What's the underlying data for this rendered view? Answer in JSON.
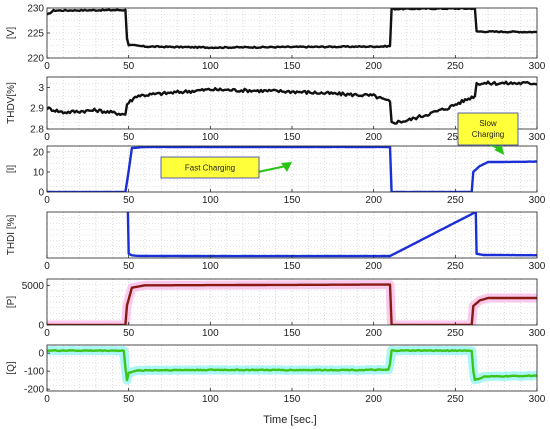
{
  "chart_data": [
    {
      "type": "line",
      "ylabel": "[V]",
      "xlim": [
        0,
        300
      ],
      "ylim": [
        220,
        230
      ],
      "yticks": [
        220,
        225,
        230
      ],
      "xticks": [
        0,
        50,
        100,
        150,
        200,
        250,
        300
      ],
      "grid": true,
      "series": [
        {
          "color": "#111111",
          "shade": null,
          "noise": 0.12,
          "x": [
            0,
            4,
            48,
            49,
            50,
            60,
            100,
            150,
            205,
            210,
            211,
            240,
            262,
            263,
            300
          ],
          "y": [
            228.6,
            229.5,
            229.6,
            224,
            222.6,
            222.3,
            222.1,
            222.2,
            222.3,
            222.4,
            229.8,
            229.9,
            229.9,
            225.3,
            225.2
          ]
        }
      ]
    },
    {
      "type": "line",
      "ylabel": "THDV[%]",
      "xlim": [
        0,
        300
      ],
      "ylim": [
        2.8,
        3.05
      ],
      "yticks": [
        2.8,
        2.9,
        3.0
      ],
      "xticks": [
        0,
        50,
        100,
        150,
        200,
        250,
        300
      ],
      "grid": true,
      "series": [
        {
          "color": "#111111",
          "shade": null,
          "noise": 0.008,
          "x": [
            0,
            10,
            30,
            48,
            49,
            55,
            100,
            150,
            200,
            210,
            211,
            220,
            245,
            262,
            263,
            300
          ],
          "y": [
            2.9,
            2.88,
            2.89,
            2.87,
            2.92,
            2.96,
            2.99,
            2.98,
            2.96,
            2.93,
            2.83,
            2.84,
            2.9,
            2.96,
            3.02,
            3.02
          ]
        }
      ]
    },
    {
      "type": "line",
      "ylabel": "[I]",
      "xlim": [
        0,
        300
      ],
      "ylim": [
        0,
        23
      ],
      "yticks": [
        0,
        10,
        20
      ],
      "xticks": [
        0,
        50,
        100,
        150,
        200,
        250,
        300
      ],
      "grid": true,
      "series": [
        {
          "color": "#1a2fd6",
          "shade": null,
          "noise": 0.05,
          "x": [
            0,
            48,
            49,
            52,
            60,
            210,
            211,
            260,
            261,
            265,
            270,
            300
          ],
          "y": [
            0,
            0,
            5,
            22,
            22.5,
            22.5,
            0,
            0,
            10,
            13,
            15,
            15.2
          ]
        }
      ],
      "annotations": [
        {
          "lines": [
            "Fast  Charging"
          ],
          "x": 150,
          "y": 14
        },
        {
          "lines": [
            "Slow",
            "Charging"
          ],
          "x": 280,
          "y": 20
        }
      ]
    },
    {
      "type": "line",
      "ylabel": "THDI [%]",
      "xlim": [
        0,
        300
      ],
      "ylim": [
        0,
        38
      ],
      "yticks": [],
      "xticks": [
        0,
        50,
        100,
        150,
        200,
        250,
        300
      ],
      "grid": true,
      "series": [
        {
          "color": "#1a2fd6",
          "shade": null,
          "noise": 0.05,
          "x": [
            49.5,
            50,
            52,
            55,
            100,
            150,
            210,
            262.5,
            263,
            267,
            300
          ],
          "y": [
            38,
            3.5,
            2.2,
            1.8,
            1.6,
            1.6,
            1.6,
            38,
            3.5,
            2.5,
            2.3
          ]
        }
      ]
    },
    {
      "type": "line",
      "ylabel": "[P]",
      "xlim": [
        0,
        300
      ],
      "ylim": [
        0,
        5800
      ],
      "yticks": [
        0,
        5000
      ],
      "xticks": [
        0,
        50,
        100,
        150,
        200,
        250,
        300
      ],
      "grid": true,
      "series": [
        {
          "color": "#8a1a14",
          "shade": "#f7b8e6",
          "noise": 0,
          "x": [
            0,
            48,
            49,
            52,
            60,
            210,
            211,
            260,
            261,
            265,
            270,
            300
          ],
          "y": [
            0,
            0,
            2500,
            4700,
            5000,
            5100,
            0,
            0,
            2400,
            3100,
            3400,
            3400
          ]
        }
      ]
    },
    {
      "type": "line",
      "ylabel": "[Q]",
      "xlim": [
        0,
        300
      ],
      "ylim": [
        -210,
        45
      ],
      "yticks": [
        -200,
        -100,
        0
      ],
      "xticks": [
        0,
        50,
        100,
        150,
        200,
        250,
        300
      ],
      "grid": true,
      "series": [
        {
          "color": "#3fc418",
          "shade": "#8ff3f3",
          "noise": 2.5,
          "x": [
            0,
            47,
            48,
            49,
            50,
            53,
            60,
            100,
            150,
            209,
            210,
            211,
            260,
            261,
            262,
            268,
            300
          ],
          "y": [
            14,
            14,
            -80,
            -150,
            -110,
            -100,
            -95,
            -93,
            -94,
            -93,
            -60,
            14,
            14,
            -100,
            -150,
            -130,
            -125
          ]
        }
      ]
    }
  ],
  "xlabel": "Time [sec.]",
  "colors": {
    "annotation_box": "#ffff3a",
    "arrow": "#27c414"
  }
}
